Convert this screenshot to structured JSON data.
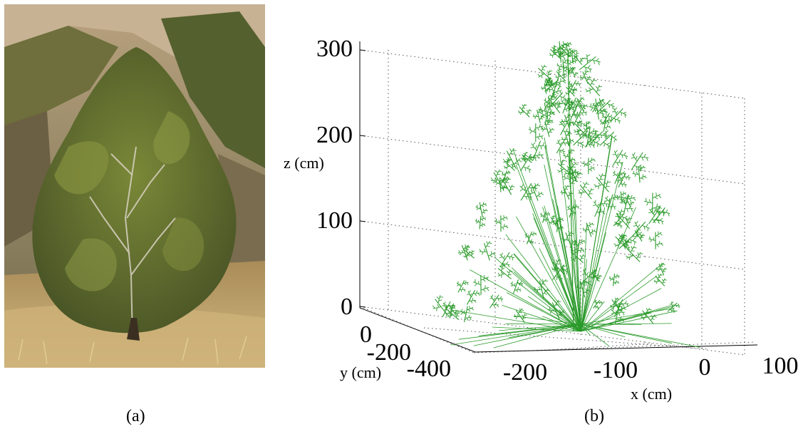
{
  "panels": {
    "a": {
      "caption": "(a)",
      "photo_subject": "juniper-shrub-on-hillside"
    },
    "b": {
      "caption": "(b)"
    }
  },
  "colors": {
    "tree": "#2a9a2a",
    "axis": "#000000",
    "grid": "#555555",
    "foliage_dark": "#4d5a26",
    "foliage_light": "#7d8a3a",
    "grass": "#c9ad73",
    "rock": "#c2ad8c"
  },
  "chart_data": {
    "type": "3d-line",
    "title": "",
    "zlabel": "z (cm)",
    "xlabel": "x (cm)",
    "ylabel": "y (cm)",
    "grid": true,
    "z_ticks": [
      "300",
      "200",
      "100",
      "0"
    ],
    "x_ticks": [
      "-200",
      "-100",
      "0",
      "100"
    ],
    "y_ticks": [
      "0",
      "-200",
      "-400"
    ],
    "zlim": [
      0,
      300
    ],
    "xlim": [
      -250,
      100
    ],
    "ylim": [
      -400,
      0
    ],
    "tree_height_cm": 300,
    "series": [
      {
        "color": "#2a9a2a",
        "kind": "branch-skeleton"
      }
    ]
  }
}
